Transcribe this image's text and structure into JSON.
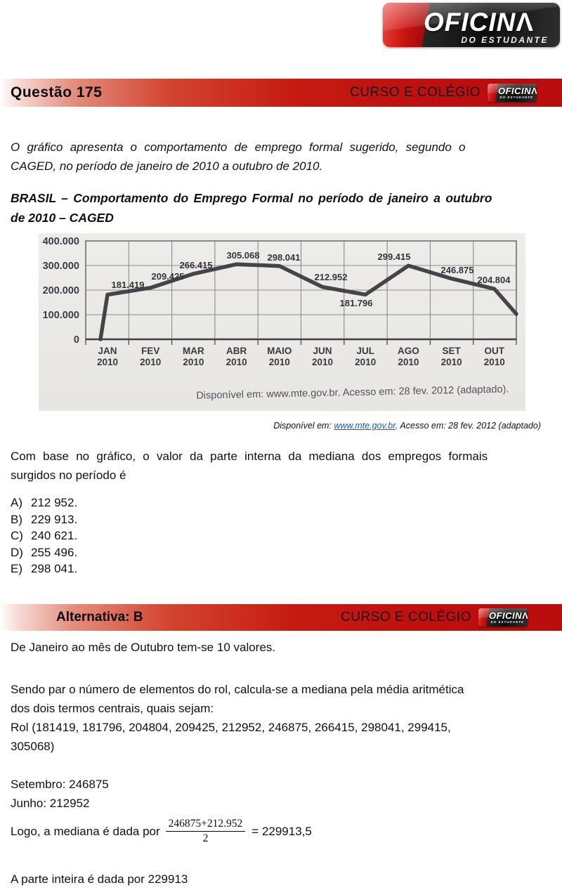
{
  "logo": {
    "brand_word": "OFICIN",
    "brand_a": "Λ",
    "tagline": "DO ESTUDANTE"
  },
  "header": {
    "question_label": "Questão  175",
    "brand_right": "CURSO E COLÉGIO"
  },
  "question": {
    "intro_l1": "O gráfico apresenta o comportamento de emprego formal sugerido, segundo o",
    "intro_l2": "CAGED, no período de janeiro de 2010 a outubro de 2010.",
    "title_l1": "BRASIL – Comportamento do Emprego Formal no período de janeiro a outubro",
    "title_l2": "de 2010 – CAGED",
    "prompt_l1": "Com base no gráfico, o valor da parte interna da mediana dos empregos formais",
    "prompt_l2": "surgidos no período é",
    "options": [
      {
        "letter": "A)",
        "text": "212 952."
      },
      {
        "letter": "B)",
        "text": "229 913."
      },
      {
        "letter": "C)",
        "text": "240 621."
      },
      {
        "letter": "D)",
        "text": "255 496."
      },
      {
        "letter": "E)",
        "text": "298 041."
      }
    ]
  },
  "chart_data": {
    "type": "line",
    "title": "BRASIL – Comportamento do Emprego Formal no período de janeiro a outubro de 2010 – CAGED",
    "months": [
      "JAN",
      "FEV",
      "MAR",
      "ABR",
      "MAIO",
      "JUN",
      "JUL",
      "AGO",
      "SET",
      "OUT"
    ],
    "year": "2010",
    "values": [
      181419,
      209425,
      266415,
      305068,
      298041,
      212952,
      181796,
      299415,
      246875,
      204804
    ],
    "point_labels": [
      "181.419",
      "209.425",
      "266.415",
      "305.068",
      "298.041",
      "212.952",
      "181.796",
      "299.415",
      "246.875",
      "204.804"
    ],
    "y_tick_labels": [
      "400.000",
      "300.000",
      "200.000",
      "100.000",
      "0"
    ],
    "ylim": [
      0,
      400000
    ],
    "grid": true,
    "legend": "none",
    "line_color": "#38383c",
    "source": "Disponível em: www.mte.gov.br. Acesso em: 28 fev. 2012 (adaptado)."
  },
  "caption": {
    "prefix": "Disponível em: ",
    "link": "www.mte.gov.br",
    "suffix": ". Acesso em: 28 fev. 2012 (adaptado)"
  },
  "answer_bar": {
    "label": "Alternativa: B",
    "brand_right": "CURSO E COLÉGIO"
  },
  "solution": {
    "p1": "De Janeiro ao mês de Outubro tem-se 10 valores.",
    "p2_l1": "Sendo par o número de elementos do rol, calcula-se a mediana pela média aritmética",
    "p2_l2": "dos dois termos centrais, quais sejam:",
    "rol_l1": "Rol (181419, 181796, 204804, 209425, 212952, 246875, 266415, 298041, 299415,",
    "rol_l2": "305068)",
    "setembro": "Setembro: 246875",
    "junho": "Junho: 212952",
    "median_prefix": "Logo, a mediana é dada por",
    "fraction_num": "246875+212.952",
    "fraction_den": "2",
    "median_result": "= 229913,5",
    "final": "A parte inteira é dada por 229913"
  },
  "colors": {
    "bar_red": "#c61b12",
    "logo_red": "#cc1513",
    "logo_black": "#0e0e0e",
    "link_blue": "#0b5bcb",
    "chart_line": "#38383c",
    "chart_grid": "#8a8a92",
    "scan_bg": "#ecebe7"
  }
}
